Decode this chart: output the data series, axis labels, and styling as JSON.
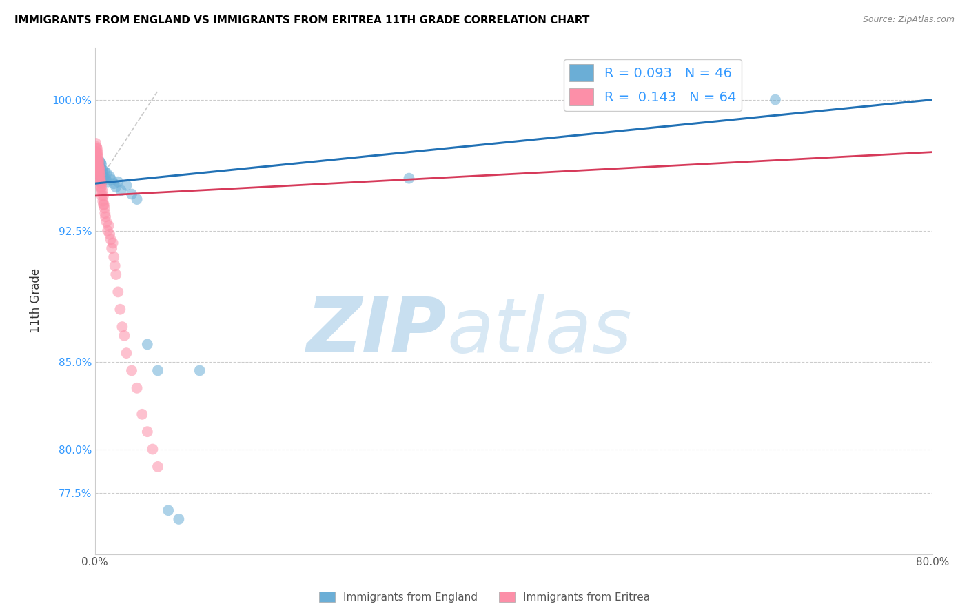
{
  "title": "IMMIGRANTS FROM ENGLAND VS IMMIGRANTS FROM ERITREA 11TH GRADE CORRELATION CHART",
  "source": "Source: ZipAtlas.com",
  "ylabel": "11th Grade",
  "R_england": 0.093,
  "N_england": 46,
  "R_eritrea": 0.143,
  "N_eritrea": 64,
  "color_england": "#6baed6",
  "color_eritrea": "#fc8fa8",
  "color_trendline_england": "#2171b5",
  "color_trendline_eritrea": "#d63a5a",
  "color_diagonal": "#bbbbbb",
  "watermark_zip_color": "#c8dff0",
  "watermark_atlas_color": "#c8dff0",
  "england_x": [
    0.15,
    0.18,
    0.22,
    0.25,
    0.28,
    0.3,
    0.32,
    0.35,
    0.38,
    0.4,
    0.42,
    0.45,
    0.48,
    0.5,
    0.52,
    0.55,
    0.58,
    0.6,
    0.65,
    0.7,
    0.75,
    0.8,
    0.85,
    0.9,
    1.0,
    1.1,
    1.2,
    1.4,
    1.6,
    1.8,
    2.0,
    2.2,
    2.5,
    3.0,
    3.5,
    4.0,
    5.0,
    6.0,
    7.0,
    8.0,
    10.0,
    30.0,
    65.0,
    0.2,
    0.35,
    0.55
  ],
  "england_y": [
    96.2,
    96.5,
    96.3,
    96.1,
    96.4,
    96.2,
    96.0,
    96.3,
    96.1,
    96.5,
    96.2,
    96.0,
    95.8,
    96.2,
    95.9,
    96.1,
    95.7,
    96.3,
    95.5,
    96.0,
    95.8,
    95.6,
    95.4,
    95.9,
    95.5,
    95.8,
    95.3,
    95.6,
    95.4,
    95.2,
    95.0,
    95.3,
    94.8,
    95.1,
    94.6,
    94.3,
    86.0,
    84.5,
    76.5,
    76.0,
    84.5,
    95.5,
    100.0,
    96.0,
    95.7,
    96.4
  ],
  "eritrea_x": [
    0.05,
    0.08,
    0.1,
    0.12,
    0.15,
    0.17,
    0.19,
    0.2,
    0.22,
    0.24,
    0.25,
    0.27,
    0.29,
    0.3,
    0.32,
    0.34,
    0.35,
    0.37,
    0.39,
    0.4,
    0.42,
    0.44,
    0.45,
    0.47,
    0.49,
    0.5,
    0.52,
    0.55,
    0.58,
    0.6,
    0.65,
    0.7,
    0.75,
    0.8,
    0.85,
    0.9,
    0.95,
    1.0,
    1.1,
    1.2,
    1.3,
    1.4,
    1.5,
    1.6,
    1.7,
    1.8,
    1.9,
    2.0,
    2.2,
    2.4,
    2.6,
    2.8,
    3.0,
    3.5,
    4.0,
    4.5,
    5.0,
    5.5,
    6.0,
    0.1,
    0.2,
    0.3,
    0.6,
    0.8
  ],
  "eritrea_y": [
    97.0,
    97.5,
    97.2,
    97.0,
    97.3,
    96.8,
    97.0,
    97.2,
    96.5,
    97.0,
    96.8,
    96.3,
    96.7,
    96.5,
    96.2,
    96.5,
    96.0,
    96.3,
    95.8,
    96.1,
    95.5,
    96.0,
    95.8,
    95.3,
    95.7,
    95.5,
    95.0,
    95.3,
    94.8,
    95.2,
    94.5,
    94.8,
    94.2,
    94.5,
    94.0,
    93.8,
    93.5,
    93.3,
    93.0,
    92.5,
    92.8,
    92.3,
    92.0,
    91.5,
    91.8,
    91.0,
    90.5,
    90.0,
    89.0,
    88.0,
    87.0,
    86.5,
    85.5,
    84.5,
    83.5,
    82.0,
    81.0,
    80.0,
    79.0,
    96.5,
    96.0,
    95.8,
    95.0,
    94.0
  ]
}
